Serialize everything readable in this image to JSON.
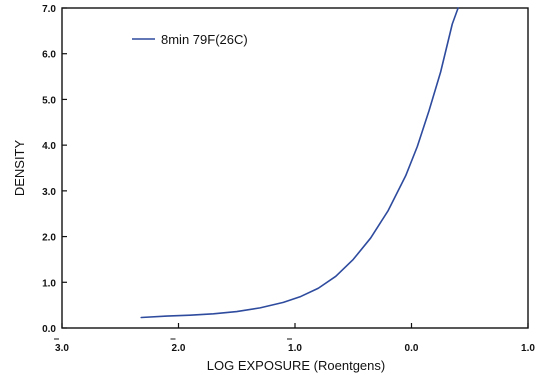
{
  "chart_data": {
    "type": "line",
    "title": "",
    "xlabel": "LOG EXPOSURE (Roentgens)",
    "ylabel": "DENSITY",
    "xlim": [
      -3.0,
      1.0
    ],
    "ylim": [
      0.0,
      7.0
    ],
    "x_ticks": [
      -3.0,
      -2.0,
      -1.0,
      0.0,
      1.0
    ],
    "x_tick_labels": [
      "3.0",
      "2.0",
      "1.0",
      "0.0",
      "1.0"
    ],
    "x_tick_bar": [
      true,
      true,
      true,
      false,
      false
    ],
    "y_ticks": [
      0,
      1,
      2,
      3,
      4,
      5,
      6,
      7
    ],
    "y_tick_labels": [
      "0.0",
      "1.0",
      "2.0",
      "3.0",
      "4.0",
      "5.0",
      "6.0",
      "7.0"
    ],
    "grid": false,
    "legend": {
      "position": "top-left"
    },
    "series": [
      {
        "name": "8min 79F(26C)",
        "color": "#2e4b9e",
        "x": [
          -2.32,
          -2.1,
          -1.9,
          -1.7,
          -1.5,
          -1.3,
          -1.1,
          -0.95,
          -0.8,
          -0.65,
          -0.5,
          -0.35,
          -0.2,
          -0.05,
          0.05,
          0.15,
          0.25,
          0.35,
          0.4
        ],
        "y": [
          0.23,
          0.26,
          0.28,
          0.31,
          0.36,
          0.44,
          0.56,
          0.69,
          0.87,
          1.13,
          1.5,
          1.97,
          2.57,
          3.33,
          3.97,
          4.75,
          5.6,
          6.65,
          7.0
        ]
      }
    ]
  }
}
